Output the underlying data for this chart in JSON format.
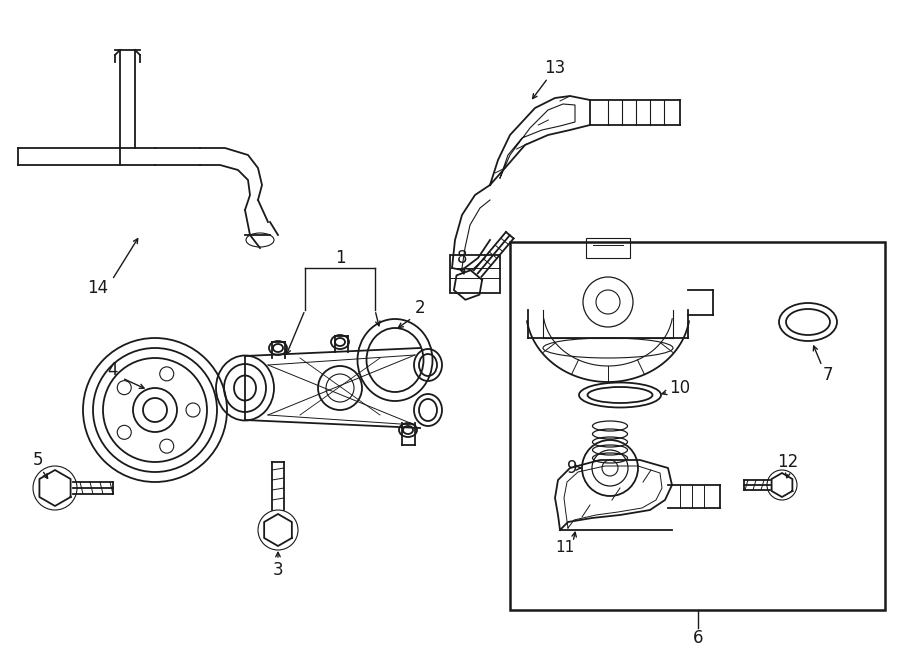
{
  "bg_color": "#ffffff",
  "line_color": "#1a1a1a",
  "figsize": [
    9.0,
    6.61
  ],
  "dpi": 100,
  "lw": 1.3
}
